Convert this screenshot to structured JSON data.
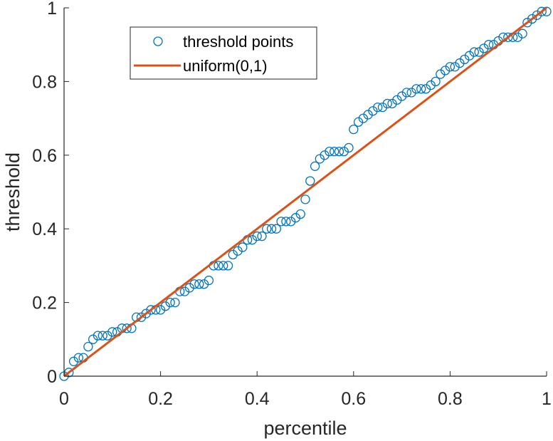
{
  "chart_data": {
    "type": "scatter",
    "title": "",
    "xlabel": "percentile",
    "ylabel": "threshold",
    "xlim": [
      0,
      1
    ],
    "ylim": [
      0,
      1
    ],
    "xticks": [
      "0",
      "0.2",
      "0.4",
      "0.6",
      "0.8",
      "1"
    ],
    "yticks": [
      "0",
      "0.2",
      "0.4",
      "0.6",
      "0.8",
      "1"
    ],
    "grid": false,
    "legend_position": "top-left",
    "series": [
      {
        "name": "threshold points",
        "kind": "markers",
        "marker": "circle",
        "color": "#0072BD",
        "x": [
          0,
          0.01,
          0.02,
          0.03,
          0.04,
          0.05,
          0.06,
          0.07,
          0.08,
          0.09,
          0.1,
          0.11,
          0.12,
          0.13,
          0.14,
          0.15,
          0.16,
          0.17,
          0.18,
          0.19,
          0.2,
          0.21,
          0.22,
          0.23,
          0.24,
          0.25,
          0.26,
          0.27,
          0.28,
          0.29,
          0.3,
          0.31,
          0.32,
          0.33,
          0.34,
          0.35,
          0.36,
          0.37,
          0.38,
          0.39,
          0.4,
          0.41,
          0.42,
          0.43,
          0.44,
          0.45,
          0.46,
          0.47,
          0.48,
          0.49,
          0.5,
          0.51,
          0.52,
          0.53,
          0.54,
          0.55,
          0.56,
          0.57,
          0.58,
          0.59,
          0.6,
          0.61,
          0.62,
          0.63,
          0.64,
          0.65,
          0.66,
          0.67,
          0.68,
          0.69,
          0.7,
          0.71,
          0.72,
          0.73,
          0.74,
          0.75,
          0.76,
          0.77,
          0.78,
          0.79,
          0.8,
          0.81,
          0.82,
          0.83,
          0.84,
          0.85,
          0.86,
          0.87,
          0.88,
          0.89,
          0.9,
          0.91,
          0.92,
          0.93,
          0.94,
          0.95,
          0.96,
          0.97,
          0.98,
          0.99,
          1
        ],
        "y": [
          0,
          0.01,
          0.04,
          0.05,
          0.05,
          0.08,
          0.1,
          0.11,
          0.11,
          0.11,
          0.12,
          0.12,
          0.13,
          0.13,
          0.13,
          0.16,
          0.16,
          0.17,
          0.18,
          0.18,
          0.18,
          0.19,
          0.2,
          0.2,
          0.23,
          0.23,
          0.24,
          0.25,
          0.25,
          0.25,
          0.26,
          0.3,
          0.3,
          0.3,
          0.3,
          0.33,
          0.34,
          0.35,
          0.37,
          0.37,
          0.38,
          0.38,
          0.4,
          0.4,
          0.4,
          0.42,
          0.42,
          0.42,
          0.43,
          0.44,
          0.48,
          0.53,
          0.57,
          0.59,
          0.6,
          0.61,
          0.61,
          0.61,
          0.61,
          0.62,
          0.67,
          0.69,
          0.7,
          0.71,
          0.72,
          0.73,
          0.73,
          0.74,
          0.74,
          0.75,
          0.76,
          0.77,
          0.77,
          0.78,
          0.78,
          0.78,
          0.79,
          0.8,
          0.82,
          0.83,
          0.84,
          0.84,
          0.85,
          0.86,
          0.87,
          0.88,
          0.88,
          0.89,
          0.9,
          0.9,
          0.91,
          0.92,
          0.92,
          0.92,
          0.92,
          0.93,
          0.96,
          0.97,
          0.98,
          0.99,
          0.99
        ]
      },
      {
        "name": "uniform(0,1)",
        "kind": "line",
        "color": "#D95319",
        "x": [
          0,
          1
        ],
        "y": [
          0,
          1
        ]
      }
    ]
  }
}
